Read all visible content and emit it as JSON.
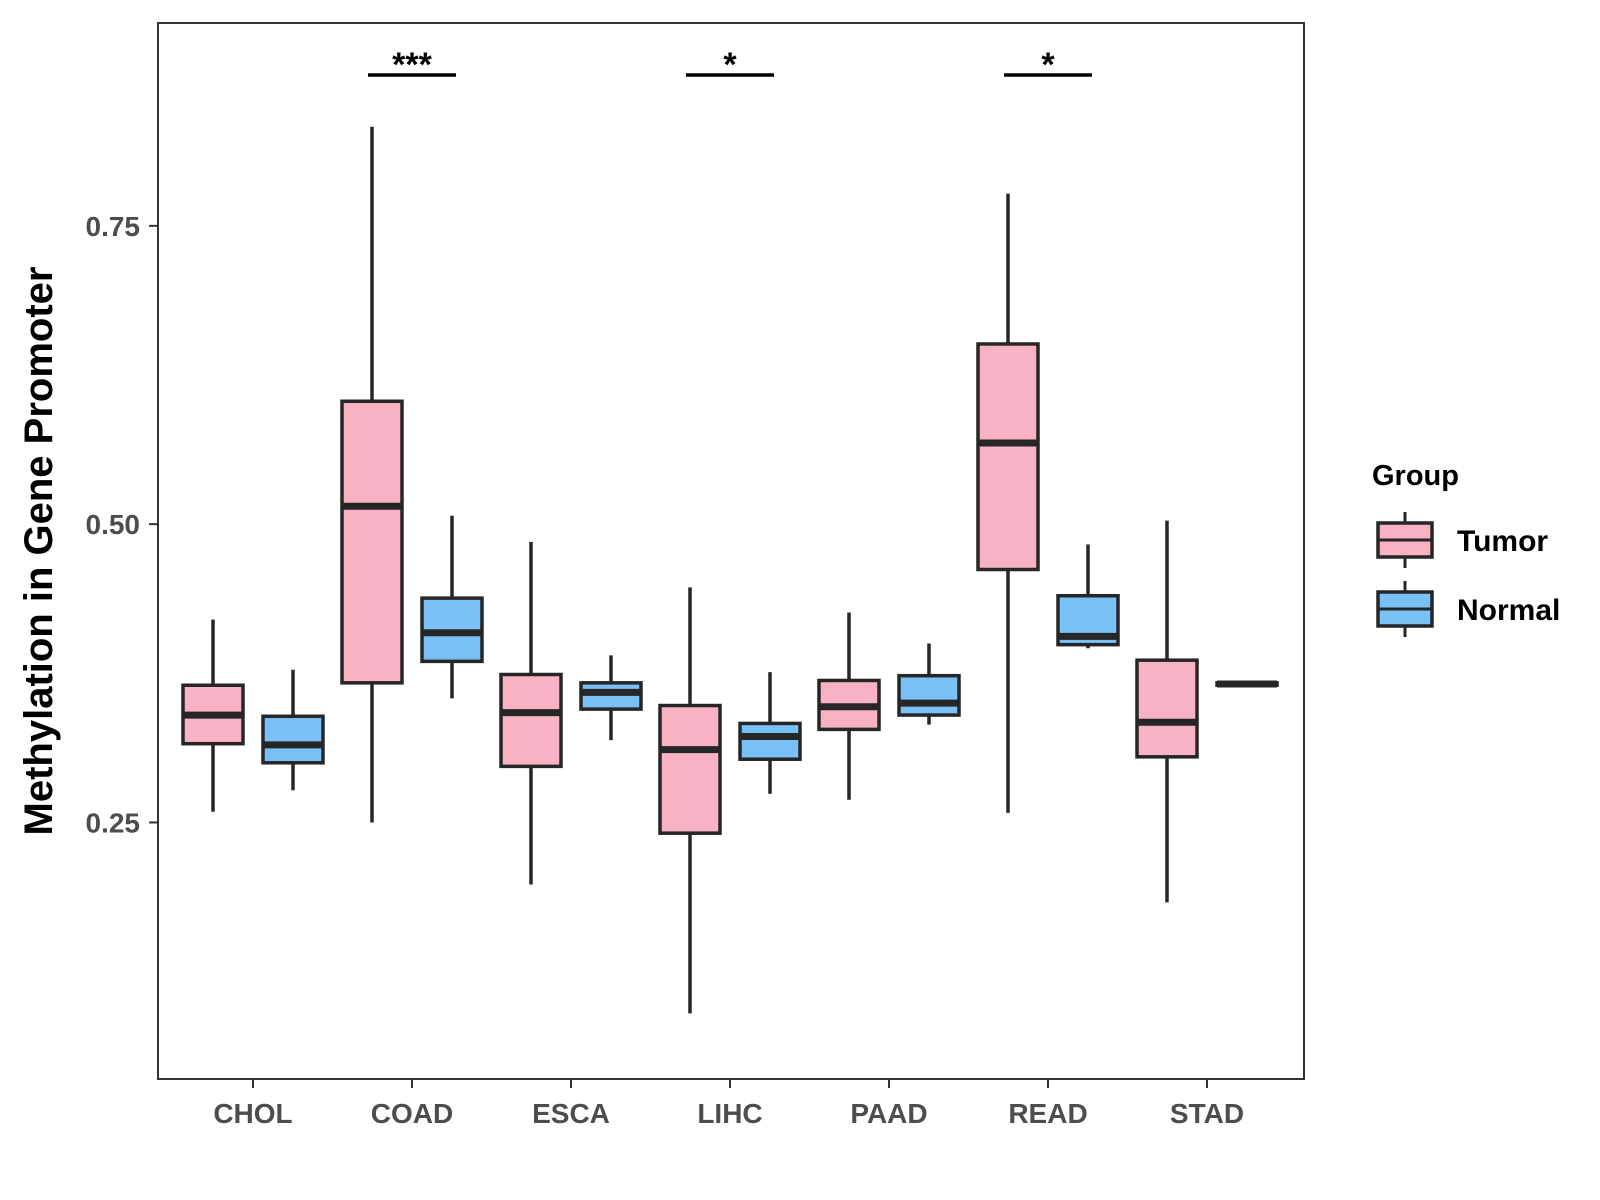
{
  "chart_data": {
    "type": "boxplot",
    "title": "",
    "xlabel": "",
    "ylabel": "Methylation in Gene Promoter",
    "ylim": [
      0.035,
      0.92
    ],
    "yticks": [
      0.25,
      0.5,
      0.75
    ],
    "ytick_labels": [
      "0.25",
      "0.50",
      "0.75"
    ],
    "grid": false,
    "categories": [
      "CHOL",
      "COAD",
      "ESCA",
      "LIHC",
      "PAAD",
      "READ",
      "STAD"
    ],
    "legend": {
      "title": "Group",
      "position": "right",
      "entries": [
        {
          "name": "Tumor",
          "color": "#f9b1c4"
        },
        {
          "name": "Normal",
          "color": "#79c0f7"
        }
      ]
    },
    "series": [
      {
        "name": "Tumor",
        "color": "#f9b1c4",
        "boxes": [
          {
            "min": 0.259,
            "q1": 0.316,
            "median": 0.34,
            "q3": 0.365,
            "max": 0.42
          },
          {
            "min": 0.25,
            "q1": 0.367,
            "median": 0.515,
            "q3": 0.603,
            "max": 0.833
          },
          {
            "min": 0.198,
            "q1": 0.297,
            "median": 0.342,
            "q3": 0.374,
            "max": 0.485
          },
          {
            "min": 0.09,
            "q1": 0.241,
            "median": 0.311,
            "q3": 0.348,
            "max": 0.447
          },
          {
            "min": 0.269,
            "q1": 0.328,
            "median": 0.347,
            "q3": 0.369,
            "max": 0.426
          },
          {
            "min": 0.258,
            "q1": 0.462,
            "median": 0.568,
            "q3": 0.651,
            "max": 0.777
          },
          {
            "min": 0.183,
            "q1": 0.305,
            "median": 0.334,
            "q3": 0.386,
            "max": 0.503
          }
        ]
      },
      {
        "name": "Normal",
        "color": "#79c0f7",
        "boxes": [
          {
            "min": 0.277,
            "q1": 0.3,
            "median": 0.315,
            "q3": 0.339,
            "max": 0.378
          },
          {
            "min": 0.354,
            "q1": 0.385,
            "median": 0.409,
            "q3": 0.438,
            "max": 0.507
          },
          {
            "min": 0.319,
            "q1": 0.345,
            "median": 0.359,
            "q3": 0.367,
            "max": 0.39
          },
          {
            "min": 0.274,
            "q1": 0.303,
            "median": 0.322,
            "q3": 0.333,
            "max": 0.376
          },
          {
            "min": 0.332,
            "q1": 0.34,
            "median": 0.35,
            "q3": 0.373,
            "max": 0.4
          },
          {
            "min": 0.396,
            "q1": 0.399,
            "median": 0.406,
            "q3": 0.44,
            "max": 0.483
          },
          {
            "min": 0.365,
            "q1": 0.365,
            "median": 0.366,
            "q3": 0.367,
            "max": 0.368
          }
        ]
      }
    ],
    "annotations": [
      {
        "category": "COAD",
        "label": "***"
      },
      {
        "category": "LIHC",
        "label": "*"
      },
      {
        "category": "READ",
        "label": "*"
      }
    ]
  }
}
